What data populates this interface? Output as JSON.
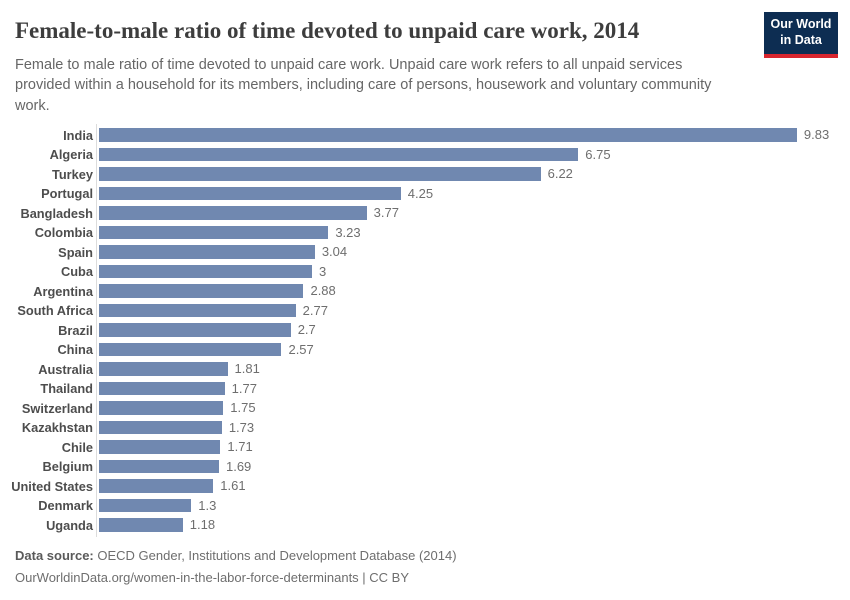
{
  "header": {
    "title": "Female-to-male ratio of time devoted to unpaid care work, 2014",
    "subtitle": "Female to male ratio of time devoted to unpaid care work. Unpaid care work refers to all unpaid services provided within a household for its members, including care of persons, housework and voluntary community work.",
    "logo": {
      "line1": "Our World",
      "line2": "in Data",
      "bg_color": "#0d2d52",
      "accent_color": "#d8252e"
    }
  },
  "chart_data": {
    "type": "bar",
    "orientation": "horizontal",
    "title": "Female-to-male ratio of time devoted to unpaid care work, 2014",
    "xlabel": "",
    "ylabel": "",
    "xlim": [
      0,
      10
    ],
    "grid": false,
    "legend": "none",
    "bar_color": "#7088b0",
    "categories": [
      "India",
      "Algeria",
      "Turkey",
      "Portugal",
      "Bangladesh",
      "Colombia",
      "Spain",
      "Cuba",
      "Argentina",
      "South Africa",
      "Brazil",
      "China",
      "Australia",
      "Thailand",
      "Switzerland",
      "Kazakhstan",
      "Chile",
      "Belgium",
      "United States",
      "Denmark",
      "Uganda"
    ],
    "values": [
      9.83,
      6.75,
      6.22,
      4.25,
      3.77,
      3.23,
      3.04,
      3,
      2.88,
      2.77,
      2.7,
      2.57,
      1.81,
      1.77,
      1.75,
      1.73,
      1.71,
      1.69,
      1.61,
      1.3,
      1.18
    ],
    "value_labels": [
      "9.83",
      "6.75",
      "6.22",
      "4.25",
      "3.77",
      "3.23",
      "3.04",
      "3",
      "2.88",
      "2.77",
      "2.7",
      "2.57",
      "1.81",
      "1.77",
      "1.75",
      "1.73",
      "1.71",
      "1.69",
      "1.61",
      "1.3",
      "1.18"
    ]
  },
  "footer": {
    "source_label": "Data source:",
    "source_text": "OECD Gender, Institutions and Development Database (2014)",
    "citation": "OurWorldinData.org/women-in-the-labor-force-determinants | CC BY"
  }
}
